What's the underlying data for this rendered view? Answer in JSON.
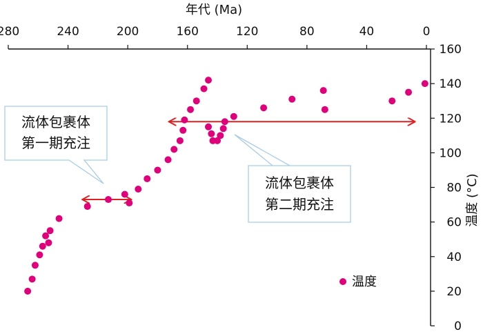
{
  "chart_data": {
    "type": "scatter",
    "title": "",
    "xlabel": "年代 (Ma)",
    "ylabel": "温度 (°C)",
    "x_axis_position": "top",
    "y_axis_position": "right",
    "x_reversed": true,
    "xlim": [
      0,
      280
    ],
    "ylim": [
      0,
      160
    ],
    "x_ticks": [
      280,
      240,
      200,
      160,
      120,
      80,
      40,
      0
    ],
    "y_ticks": [
      0,
      20,
      40,
      60,
      80,
      100,
      120,
      140,
      160
    ],
    "grid": false,
    "legend": "bottom-right",
    "series": [
      {
        "name": "温度",
        "color": "#e0007a",
        "points": [
          [
            267,
            20
          ],
          [
            264,
            27
          ],
          [
            262,
            35
          ],
          [
            259,
            41
          ],
          [
            257,
            46
          ],
          [
            255,
            52
          ],
          [
            253,
            48
          ],
          [
            252,
            55
          ],
          [
            246,
            62
          ],
          [
            227,
            69
          ],
          [
            213,
            73
          ],
          [
            202,
            76
          ],
          [
            199,
            71
          ],
          [
            193,
            79
          ],
          [
            187,
            85
          ],
          [
            180,
            90
          ],
          [
            173,
            96
          ],
          [
            169,
            102
          ],
          [
            165,
            107
          ],
          [
            163,
            113
          ],
          [
            162,
            119
          ],
          [
            158,
            125
          ],
          [
            154,
            130
          ],
          [
            149,
            137
          ],
          [
            146,
            142
          ],
          [
            146,
            115
          ],
          [
            144,
            111
          ],
          [
            143,
            107
          ],
          [
            140,
            107
          ],
          [
            138,
            110
          ],
          [
            136,
            114
          ],
          [
            135,
            118
          ],
          [
            129,
            121
          ],
          [
            109,
            126
          ],
          [
            90,
            131
          ],
          [
            69,
            136
          ],
          [
            68,
            125
          ],
          [
            23,
            130
          ],
          [
            12,
            135
          ],
          [
            1,
            140
          ]
        ]
      }
    ],
    "annotations": [
      {
        "name": "phase-1",
        "lines": [
          "流体包裹体",
          "第一期充注"
        ],
        "range_x": [
          230,
          198
        ],
        "y": 73,
        "arrow_color": "#e02020"
      },
      {
        "name": "phase-2",
        "lines": [
          "流体包裹体",
          "第二期充注"
        ],
        "range_x": [
          172,
          8
        ],
        "y": 118,
        "arrow_color": "#e02020"
      }
    ]
  }
}
